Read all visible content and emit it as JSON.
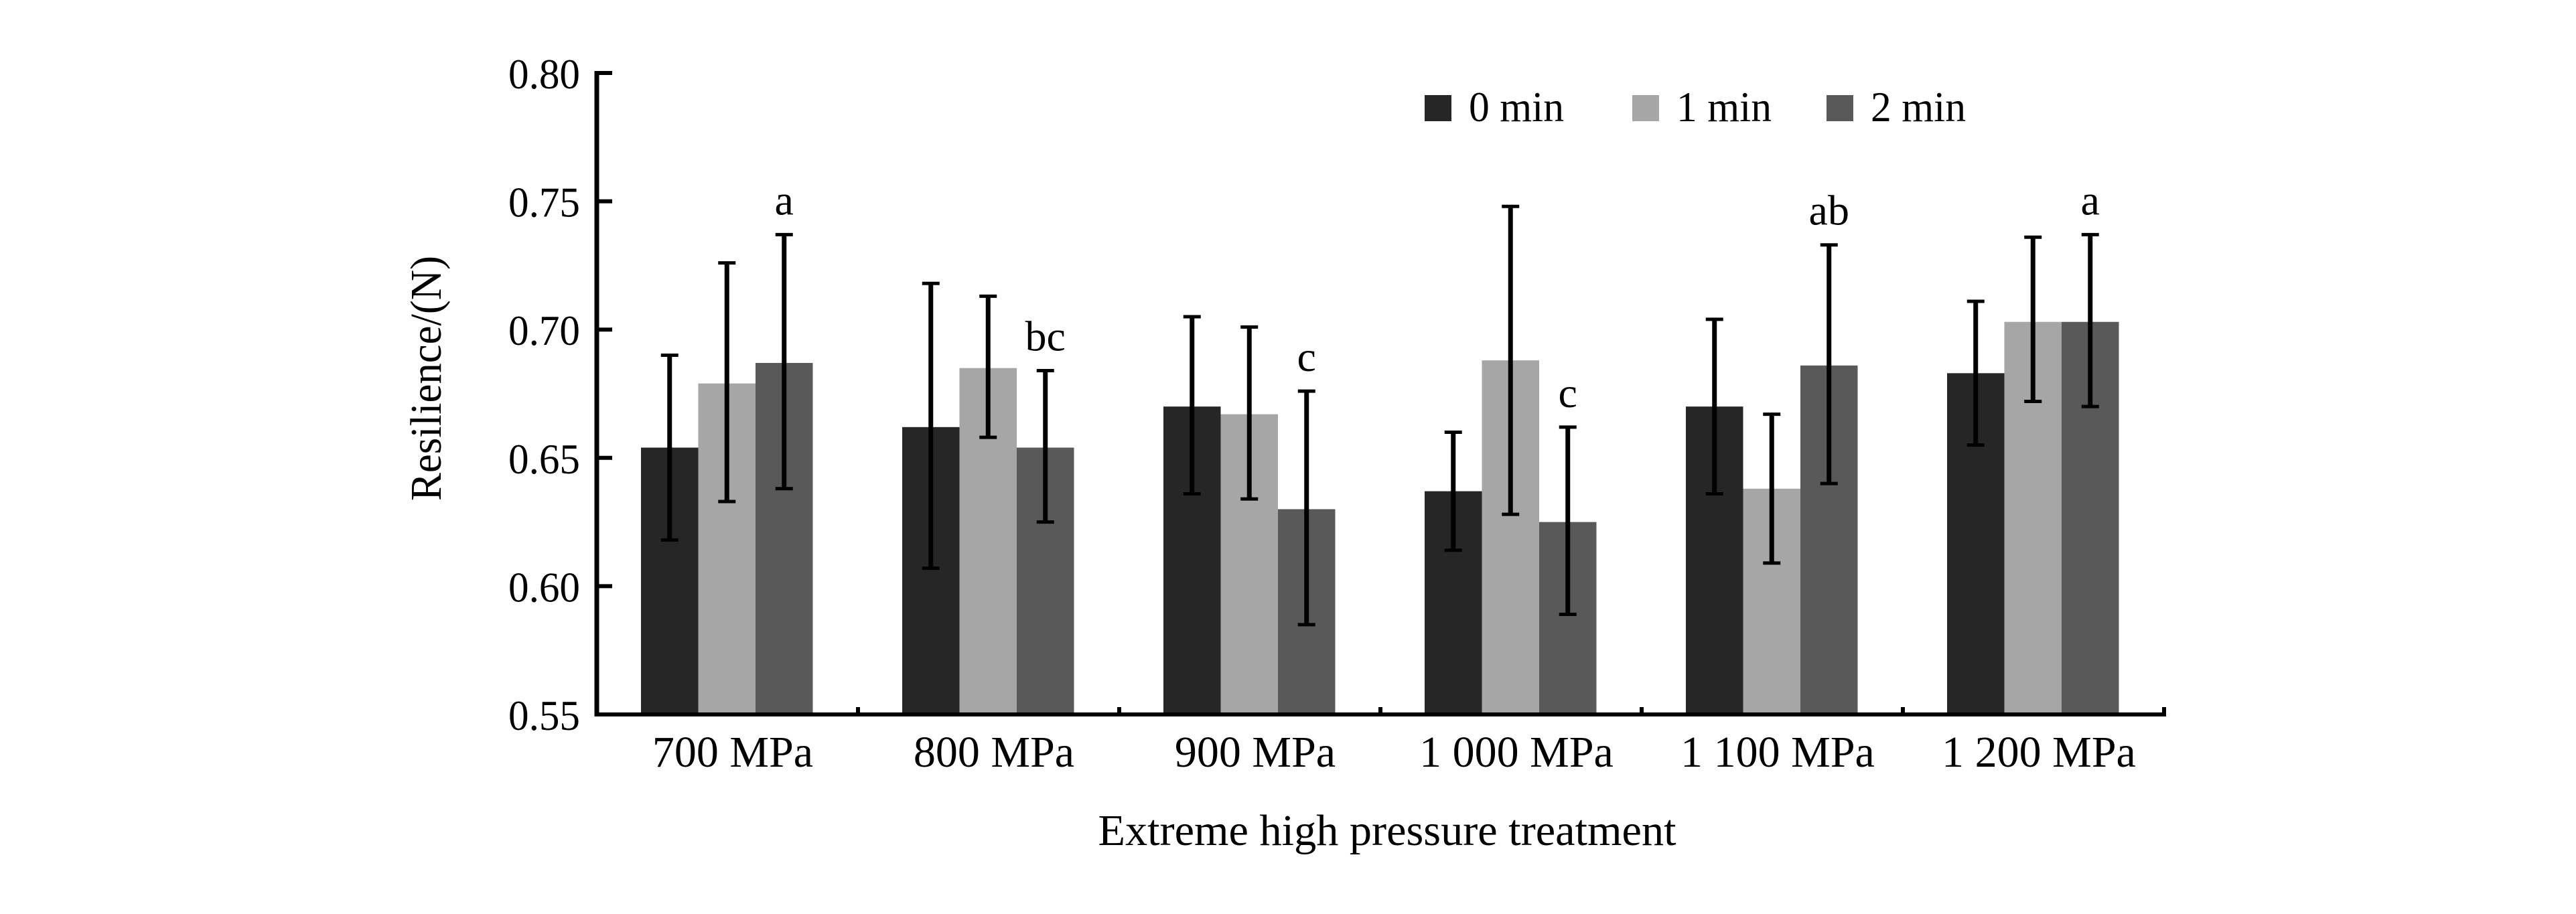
{
  "chart_data": {
    "type": "bar",
    "title": "",
    "xlabel": "Extreme high pressure treatment",
    "ylabel": "Resilience/(N)",
    "ylim": [
      0.55,
      0.8
    ],
    "yticks": [
      0.55,
      0.6,
      0.65,
      0.7,
      0.75,
      0.8
    ],
    "ytick_labels": [
      "0.55",
      "0.60",
      "0.65",
      "0.70",
      "0.75",
      "0.80"
    ],
    "categories": [
      "700 MPa",
      "800 MPa",
      "900 MPa",
      "1 000 MPa",
      "1 100 MPa",
      "1 200 MPa"
    ],
    "grid": false,
    "legend_position": "top-right",
    "series": [
      {
        "name": "0 min",
        "color": "#262626",
        "values": [
          0.654,
          0.662,
          0.67,
          0.637,
          0.67,
          0.683
        ],
        "error_upper": [
          0.69,
          0.718,
          0.705,
          0.66,
          0.704,
          0.711
        ],
        "error_lower": [
          0.618,
          0.607,
          0.636,
          0.614,
          0.636,
          0.655
        ]
      },
      {
        "name": "1 min",
        "color": "#a6a6a6",
        "values": [
          0.679,
          0.685,
          0.667,
          0.688,
          0.638,
          0.703
        ],
        "error_upper": [
          0.726,
          0.713,
          0.701,
          0.748,
          0.667,
          0.736
        ],
        "error_lower": [
          0.633,
          0.658,
          0.634,
          0.628,
          0.609,
          0.672
        ]
      },
      {
        "name": "2 min",
        "color": "#595959",
        "values": [
          0.687,
          0.654,
          0.63,
          0.625,
          0.686,
          0.703
        ],
        "error_upper": [
          0.737,
          0.684,
          0.676,
          0.662,
          0.733,
          0.737
        ],
        "error_lower": [
          0.638,
          0.625,
          0.585,
          0.589,
          0.64,
          0.67
        ]
      }
    ],
    "annotations": [
      {
        "category": "700 MPa",
        "series": "2 min",
        "text": "a"
      },
      {
        "category": "800 MPa",
        "series": "2 min",
        "text": "bc"
      },
      {
        "category": "900 MPa",
        "series": "2 min",
        "text": "c"
      },
      {
        "category": "1 000 MPa",
        "series": "2 min",
        "text": "c"
      },
      {
        "category": "1 100 MPa",
        "series": "2 min",
        "text": "ab"
      },
      {
        "category": "1 200 MPa",
        "series": "2 min",
        "text": "a"
      }
    ]
  }
}
